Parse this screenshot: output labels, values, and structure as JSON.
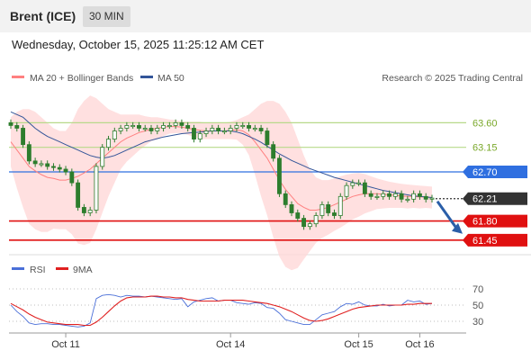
{
  "header": {
    "instrument": "Brent (ICE)",
    "timeframe": "30 MIN",
    "timestamp": "Wednesday, October 15, 2025 11:25:12 AM CET"
  },
  "legend": {
    "ma20": "MA 20 + Bollinger Bands",
    "ma50": "MA 50",
    "credit": "Research © 2025 Trading Central",
    "rsi": "RSI",
    "rsi_ma": "9MA"
  },
  "colors": {
    "candle": "#2d7d2d",
    "ma20": "#ff8080",
    "ma50": "#335599",
    "bollinger_fill": "#ffd6d6",
    "level_green": "#b7d98a",
    "level_blue": "#2f6fe0",
    "level_red": "#e01010",
    "price_tag": "#333333",
    "rsi": "#4a6fd8",
    "rsi_ma": "#e02020"
  },
  "chart_data": [
    {
      "type": "candlestick",
      "title": "Brent (ICE) 30 MIN",
      "ylim": [
        61.2,
        64.2
      ],
      "x_ticks": [
        "Oct 11",
        "Oct 14",
        "Oct 15",
        "Oct 16"
      ],
      "close": [
        63.55,
        63.5,
        63.2,
        62.9,
        62.85,
        62.85,
        62.8,
        62.78,
        62.75,
        62.7,
        62.5,
        62.05,
        61.95,
        62.0,
        62.8,
        63.15,
        63.3,
        63.45,
        63.5,
        63.55,
        63.55,
        63.5,
        63.5,
        63.45,
        63.5,
        63.55,
        63.55,
        63.6,
        63.55,
        63.5,
        63.3,
        63.4,
        63.45,
        63.5,
        63.45,
        63.45,
        63.5,
        63.55,
        63.55,
        63.5,
        63.5,
        63.45,
        63.2,
        62.95,
        62.3,
        62.1,
        61.95,
        61.85,
        61.7,
        61.75,
        61.9,
        62.1,
        61.95,
        61.9,
        62.25,
        62.45,
        62.5,
        62.5,
        62.3,
        62.25,
        62.25,
        62.3,
        62.25,
        62.3,
        62.2,
        62.2,
        62.3,
        62.25,
        62.2,
        62.22
      ],
      "ma20": [
        63.25,
        63.1,
        62.95,
        62.8,
        62.72,
        62.65,
        62.6,
        62.58,
        62.55,
        62.55,
        62.58,
        62.62,
        62.68,
        62.75,
        62.85,
        62.95,
        63.05,
        63.15,
        63.25,
        63.32,
        63.37,
        63.42,
        63.45,
        63.48,
        63.5,
        63.52,
        63.53,
        63.53,
        63.52,
        63.5,
        63.48,
        63.46,
        63.45,
        63.45,
        63.45,
        63.45,
        63.46,
        63.47,
        63.45,
        63.38,
        63.25,
        63.1,
        62.95,
        62.75,
        62.55,
        62.38,
        62.25,
        62.12,
        62.05,
        62.0,
        62.0,
        62.02,
        62.05,
        62.1,
        62.15,
        62.2,
        62.25,
        62.28,
        62.3,
        62.3,
        62.3,
        62.29,
        62.28,
        62.27,
        62.26,
        62.25,
        62.25,
        62.24,
        62.24,
        62.23
      ],
      "ma50": [
        63.8,
        63.75,
        63.7,
        63.6,
        63.5,
        63.42,
        63.35,
        63.3,
        63.25,
        63.2,
        63.15,
        63.1,
        63.05,
        63.0,
        62.97,
        62.95,
        62.97,
        63.0,
        63.05,
        63.1,
        63.15,
        63.2,
        63.25,
        63.28,
        63.31,
        63.34,
        63.36,
        63.38,
        63.4,
        63.41,
        63.42,
        63.43,
        63.44,
        63.45,
        63.45,
        63.45,
        63.45,
        63.43,
        63.4,
        63.35,
        63.3,
        63.24,
        63.17,
        63.1,
        63.03,
        62.97,
        62.91,
        62.86,
        62.81,
        62.76,
        62.72,
        62.68,
        62.64,
        62.6,
        62.57,
        62.54,
        62.51,
        62.48,
        62.45,
        62.42,
        62.39,
        62.36,
        62.34,
        62.32,
        62.3,
        62.28,
        62.26,
        62.25,
        62.24,
        62.23
      ],
      "bollinger_upper": [
        63.7,
        63.8,
        63.85,
        63.85,
        63.8,
        63.7,
        63.6,
        63.5,
        63.45,
        63.45,
        63.6,
        63.85,
        64.0,
        64.1,
        64.05,
        63.95,
        63.85,
        63.8,
        63.75,
        63.75,
        63.75,
        63.75,
        63.72,
        63.7,
        63.7,
        63.68,
        63.66,
        63.65,
        63.63,
        63.62,
        63.62,
        63.62,
        63.6,
        63.6,
        63.6,
        63.6,
        63.62,
        63.65,
        63.7,
        63.75,
        63.85,
        63.95,
        64.0,
        64.0,
        63.95,
        63.8,
        63.6,
        63.3,
        63.0,
        62.75,
        62.6,
        62.55,
        62.55,
        62.58,
        62.62,
        62.65,
        62.67,
        62.68,
        62.66,
        62.62,
        62.58,
        62.55,
        62.52,
        62.5,
        62.48,
        62.47,
        62.46,
        62.45,
        62.44,
        62.43
      ],
      "bollinger_lower": [
        62.8,
        62.4,
        62.05,
        61.75,
        61.65,
        61.6,
        61.6,
        61.66,
        61.65,
        61.65,
        61.56,
        61.39,
        61.36,
        61.4,
        61.65,
        61.95,
        62.25,
        62.5,
        62.75,
        62.89,
        62.99,
        63.09,
        63.18,
        63.26,
        63.3,
        63.36,
        63.4,
        63.41,
        63.41,
        63.38,
        63.34,
        63.3,
        63.3,
        63.3,
        63.3,
        63.3,
        63.3,
        63.29,
        63.2,
        63.01,
        62.65,
        62.25,
        61.9,
        61.5,
        61.15,
        60.96,
        60.9,
        60.94,
        61.1,
        61.25,
        61.4,
        61.49,
        61.55,
        61.62,
        61.68,
        61.75,
        61.83,
        61.88,
        61.94,
        61.98,
        62.02,
        62.03,
        62.04,
        62.04,
        62.04,
        62.03,
        62.04,
        62.03,
        62.04,
        62.03
      ]
    },
    {
      "type": "line",
      "levels": [
        {
          "value": 63.6,
          "label": "63.60",
          "kind": "resistance"
        },
        {
          "value": 63.15,
          "label": "63.15",
          "kind": "resistance"
        },
        {
          "value": 62.7,
          "label": "62.70",
          "kind": "pivot"
        },
        {
          "value": 62.21,
          "label": "62.21",
          "kind": "last"
        },
        {
          "value": 61.8,
          "label": "61.80",
          "kind": "support"
        },
        {
          "value": 61.45,
          "label": "61.45",
          "kind": "support"
        }
      ],
      "forecast_arrow": {
        "from": 62.21,
        "to": 61.6
      }
    },
    {
      "type": "line",
      "ylim": [
        20,
        80
      ],
      "y_ticks": [
        30,
        50,
        70
      ],
      "series": [
        {
          "name": "RSI",
          "values": [
            50,
            42,
            36,
            28,
            26,
            27,
            27,
            26,
            26,
            25,
            24,
            23,
            24,
            28,
            58,
            62,
            63,
            62,
            60,
            62,
            61,
            61,
            60,
            61,
            60,
            59,
            58,
            57,
            58,
            48,
            54,
            56,
            58,
            59,
            55,
            56,
            56,
            53,
            52,
            51,
            53,
            52,
            47,
            46,
            40,
            32,
            30,
            28,
            26,
            26,
            32,
            38,
            40,
            42,
            48,
            52,
            51,
            54,
            50,
            49,
            49,
            51,
            49,
            50,
            50,
            56,
            54,
            55,
            51,
            52
          ]
        },
        {
          "name": "9MA",
          "values": [
            52,
            48,
            44,
            39,
            35,
            32,
            29,
            28,
            27,
            26,
            26,
            26,
            25,
            25,
            29,
            35,
            42,
            49,
            55,
            59,
            60,
            60,
            60,
            61,
            61,
            60,
            60,
            59,
            59,
            57,
            56,
            55,
            55,
            55,
            55,
            56,
            56,
            56,
            56,
            55,
            54,
            53,
            52,
            50,
            48,
            45,
            42,
            38,
            34,
            31,
            30,
            31,
            33,
            36,
            39,
            42,
            45,
            47,
            48,
            49,
            50,
            50,
            50,
            50,
            50,
            51,
            51,
            52,
            52,
            52
          ]
        }
      ]
    }
  ]
}
